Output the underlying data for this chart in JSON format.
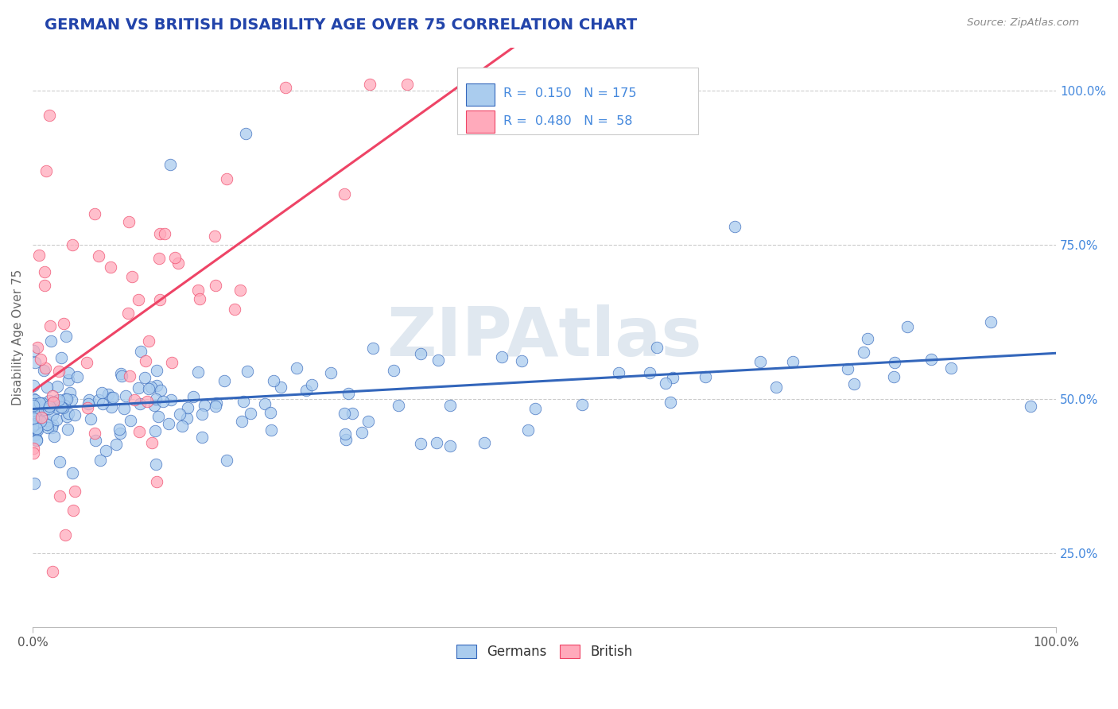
{
  "title": "GERMAN VS BRITISH DISABILITY AGE OVER 75 CORRELATION CHART",
  "source": "Source: ZipAtlas.com",
  "ylabel": "Disability Age Over 75",
  "legend_labels": [
    "Germans",
    "British"
  ],
  "german_R": 0.15,
  "german_N": 175,
  "british_R": 0.48,
  "british_N": 58,
  "german_color": "#aaccee",
  "british_color": "#ffaabb",
  "german_line_color": "#3366bb",
  "british_line_color": "#ee4466",
  "background_color": "#ffffff",
  "grid_color": "#cccccc",
  "title_color": "#2244aa",
  "axis_label_color": "#666666",
  "right_tick_color": "#4488dd",
  "xlim": [
    0,
    1
  ],
  "ylim": [
    0.13,
    1.07
  ],
  "watermark": "ZIPAtlas",
  "watermark_color": "#e0e8f0"
}
